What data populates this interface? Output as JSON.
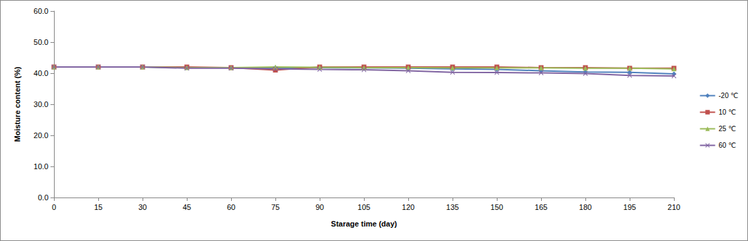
{
  "chart_data": {
    "type": "line",
    "x_label": "Starage time (day)",
    "y_label": "Moisture content (%)",
    "categories": [
      "0",
      "15",
      "30",
      "45",
      "60",
      "75",
      "90",
      "105",
      "120",
      "135",
      "150",
      "165",
      "180",
      "195",
      "210"
    ],
    "series": [
      {
        "name": "-20 ℃",
        "color": "#4F81BD",
        "marker": "diamond",
        "values": [
          42.0,
          42.0,
          42.0,
          41.8,
          41.8,
          41.8,
          41.8,
          41.7,
          41.6,
          41.4,
          41.2,
          40.8,
          40.4,
          40.3,
          39.8
        ]
      },
      {
        "name": "10 ℃",
        "color": "#C0504D",
        "marker": "square",
        "values": [
          42.0,
          42.0,
          42.0,
          42.0,
          41.8,
          41.0,
          42.0,
          42.0,
          42.0,
          42.0,
          42.0,
          41.8,
          41.8,
          41.6,
          41.6
        ]
      },
      {
        "name": "25 ℃",
        "color": "#9BBB59",
        "marker": "triangle",
        "values": [
          42.0,
          42.0,
          42.0,
          41.8,
          41.8,
          42.0,
          41.9,
          41.8,
          41.8,
          41.7,
          41.7,
          41.7,
          41.6,
          41.6,
          41.4
        ]
      },
      {
        "name": "60 ℃",
        "color": "#8064A2",
        "marker": "x",
        "values": [
          42.0,
          42.0,
          42.0,
          41.6,
          41.6,
          41.4,
          41.2,
          41.1,
          40.8,
          40.3,
          40.2,
          40.1,
          39.9,
          39.3,
          39.1
        ]
      }
    ],
    "ylim": [
      0,
      60
    ],
    "yticks": [
      {
        "value": 0,
        "label": "0.0"
      },
      {
        "value": 10,
        "label": "10.0"
      },
      {
        "value": 20,
        "label": "20.0"
      },
      {
        "value": 30,
        "label": "30.0"
      },
      {
        "value": 40,
        "label": "40.0"
      },
      {
        "value": 50,
        "label": "50.0"
      },
      {
        "value": 60,
        "label": "60.0"
      }
    ],
    "grid": false,
    "legend": "right"
  }
}
